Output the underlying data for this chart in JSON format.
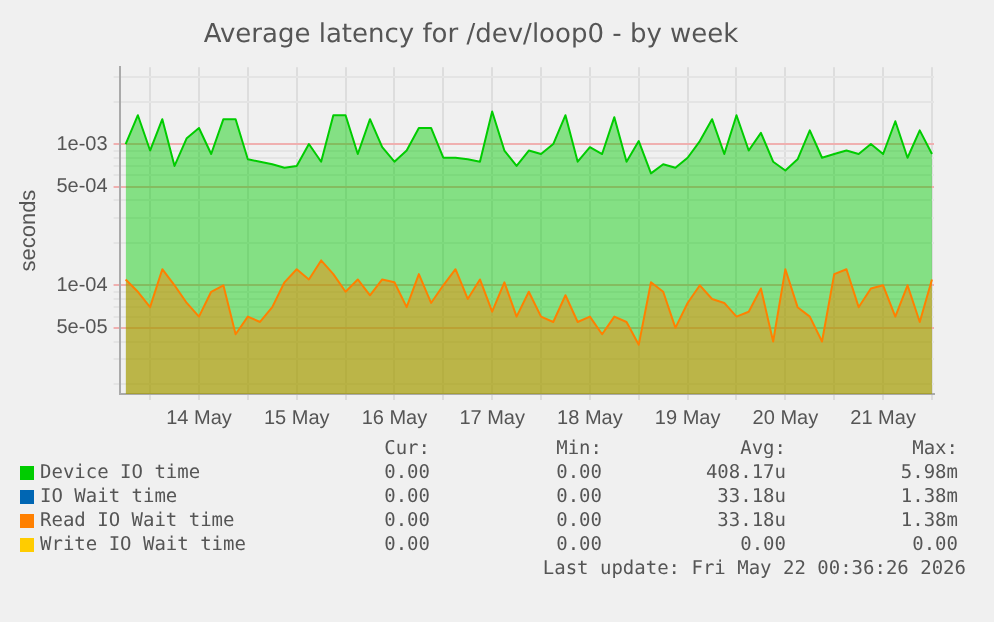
{
  "chart_data": {
    "type": "area",
    "title": "Average latency for /dev/loop0 - by week",
    "ylabel": "seconds",
    "log": "y",
    "x": [
      "2026-05-13T18:00",
      "2026-05-13T21:00",
      "2026-05-14T00:00",
      "2026-05-14T03:00",
      "2026-05-14T06:00",
      "2026-05-14T09:00",
      "2026-05-14T12:00",
      "2026-05-14T15:00",
      "2026-05-14T18:00",
      "2026-05-14T21:00",
      "2026-05-15T00:00",
      "2026-05-15T03:00",
      "2026-05-15T06:00",
      "2026-05-15T09:00",
      "2026-05-15T12:00",
      "2026-05-15T15:00",
      "2026-05-15T18:00",
      "2026-05-15T21:00",
      "2026-05-16T00:00",
      "2026-05-16T03:00",
      "2026-05-16T06:00",
      "2026-05-16T09:00",
      "2026-05-16T12:00",
      "2026-05-16T15:00",
      "2026-05-16T18:00",
      "2026-05-16T21:00",
      "2026-05-17T00:00",
      "2026-05-17T03:00",
      "2026-05-17T06:00",
      "2026-05-17T09:00",
      "2026-05-17T12:00",
      "2026-05-17T15:00",
      "2026-05-17T18:00",
      "2026-05-17T21:00",
      "2026-05-18T00:00",
      "2026-05-18T03:00",
      "2026-05-18T06:00",
      "2026-05-18T09:00",
      "2026-05-18T12:00",
      "2026-05-18T15:00",
      "2026-05-18T18:00",
      "2026-05-18T21:00",
      "2026-05-19T00:00",
      "2026-05-19T03:00",
      "2026-05-19T06:00",
      "2026-05-19T09:00",
      "2026-05-19T12:00",
      "2026-05-19T15:00",
      "2026-05-19T18:00",
      "2026-05-19T21:00",
      "2026-05-20T00:00",
      "2026-05-20T03:00",
      "2026-05-20T06:00",
      "2026-05-20T09:00",
      "2026-05-20T12:00",
      "2026-05-20T15:00",
      "2026-05-20T18:00",
      "2026-05-20T21:00",
      "2026-05-21T00:00",
      "2026-05-21T03:00",
      "2026-05-21T06:00",
      "2026-05-21T09:00",
      "2026-05-21T12:00",
      "2026-05-21T15:00",
      "2026-05-21T18:00",
      "2026-05-21T21:00",
      "2026-05-22T00:00"
    ],
    "series": [
      {
        "name": "Device IO time",
        "color": "#00cc00",
        "values": [
          0.001,
          0.0016,
          0.0009,
          0.0015,
          0.0007,
          0.0011,
          0.0013,
          0.00085,
          0.0015,
          0.0015,
          0.00078,
          0.00075,
          0.00072,
          0.00068,
          0.0007,
          0.001,
          0.00075,
          0.0016,
          0.0016,
          0.00085,
          0.0015,
          0.00095,
          0.00075,
          0.0009,
          0.0013,
          0.0013,
          0.0008,
          0.0008,
          0.00078,
          0.00075,
          0.0017,
          0.0009,
          0.0007,
          0.0009,
          0.00085,
          0.001,
          0.0016,
          0.00075,
          0.00095,
          0.00085,
          0.00155,
          0.00075,
          0.00105,
          0.00062,
          0.00072,
          0.00068,
          0.0008,
          0.00105,
          0.0015,
          0.00085,
          0.0016,
          0.0009,
          0.0012,
          0.00075,
          0.00065,
          0.00078,
          0.00125,
          0.0008,
          0.00085,
          0.0009,
          0.00085,
          0.001,
          0.00085,
          0.00145,
          0.0008,
          0.00125,
          0.00085
        ]
      },
      {
        "name": "IO Wait time",
        "color": "#0066b3",
        "values": [
          null,
          null,
          null,
          null,
          null,
          null,
          null,
          null,
          null,
          null,
          null,
          null,
          null,
          null,
          null,
          null,
          null,
          null,
          null,
          null,
          null,
          null,
          null,
          null,
          null,
          null,
          null,
          null,
          null,
          null,
          null,
          null,
          null,
          null,
          null,
          null,
          null,
          null,
          null,
          null,
          null,
          null,
          null,
          null,
          null,
          null,
          null,
          null,
          null,
          null,
          null,
          null,
          null,
          null,
          null,
          null,
          null,
          null,
          null,
          null,
          null,
          null,
          null,
          null,
          null,
          null,
          null
        ]
      },
      {
        "name": "Read IO Wait time",
        "color": "#ff8000",
        "values": [
          0.00011,
          9e-05,
          7e-05,
          0.00013,
          0.0001,
          7.5e-05,
          6e-05,
          9e-05,
          0.0001,
          4.5e-05,
          6e-05,
          5.5e-05,
          7e-05,
          0.000105,
          0.00013,
          0.00011,
          0.00015,
          0.00012,
          9e-05,
          0.00011,
          8.5e-05,
          0.00011,
          0.000105,
          7e-05,
          0.00012,
          7.5e-05,
          0.0001,
          0.00013,
          8e-05,
          0.00011,
          6.5e-05,
          0.000105,
          6e-05,
          9e-05,
          6e-05,
          5.5e-05,
          8.5e-05,
          5.5e-05,
          6e-05,
          4.5e-05,
          6e-05,
          5.5e-05,
          3.8e-05,
          0.000105,
          9e-05,
          5e-05,
          7.5e-05,
          0.0001,
          8e-05,
          7.5e-05,
          6e-05,
          6.5e-05,
          9.5e-05,
          4e-05,
          0.00013,
          7e-05,
          6e-05,
          4e-05,
          0.00012,
          0.00013,
          7e-05,
          9.5e-05,
          0.0001,
          6e-05,
          0.0001,
          5.5e-05,
          0.00011
        ]
      },
      {
        "name": "Write IO Wait time",
        "color": "#ffcc00",
        "values": [
          null,
          null,
          null,
          null,
          null,
          null,
          null,
          null,
          null,
          null,
          null,
          null,
          null,
          null,
          null,
          null,
          null,
          null,
          null,
          null,
          null,
          null,
          null,
          null,
          null,
          null,
          null,
          null,
          null,
          null,
          null,
          null,
          null,
          null,
          null,
          null,
          null,
          null,
          null,
          null,
          null,
          null,
          null,
          null,
          null,
          null,
          null,
          null,
          null,
          null,
          null,
          null,
          null,
          null,
          null,
          null,
          null,
          null,
          null,
          null,
          null,
          null,
          null,
          null,
          null,
          null,
          null
        ]
      }
    ],
    "xlim": [
      "2026-05-13T16:30",
      "2026-05-22T00:30"
    ],
    "xticks": [
      {
        "value": "2026-05-14T00:00",
        "label": null
      },
      {
        "value": "2026-05-14T12:00",
        "label": "14 May"
      },
      {
        "value": "2026-05-15T00:00",
        "label": null
      },
      {
        "value": "2026-05-15T12:00",
        "label": "15 May"
      },
      {
        "value": "2026-05-16T00:00",
        "label": null
      },
      {
        "value": "2026-05-16T12:00",
        "label": "16 May"
      },
      {
        "value": "2026-05-17T00:00",
        "label": null
      },
      {
        "value": "2026-05-17T12:00",
        "label": "17 May"
      },
      {
        "value": "2026-05-18T00:00",
        "label": null
      },
      {
        "value": "2026-05-18T12:00",
        "label": "18 May"
      },
      {
        "value": "2026-05-19T00:00",
        "label": null
      },
      {
        "value": "2026-05-19T12:00",
        "label": "19 May"
      },
      {
        "value": "2026-05-20T00:00",
        "label": null
      },
      {
        "value": "2026-05-20T12:00",
        "label": "20 May"
      },
      {
        "value": "2026-05-21T00:00",
        "label": null
      },
      {
        "value": "2026-05-21T12:00",
        "label": "21 May"
      },
      {
        "value": "2026-05-22T00:00",
        "label": null
      }
    ],
    "ylim": [
      1.7e-05,
      0.0035
    ],
    "yticks": [
      {
        "value": 2e-05,
        "label": null
      },
      {
        "value": 3e-05,
        "label": null
      },
      {
        "value": 4e-05,
        "label": null
      },
      {
        "value": 5e-05,
        "label": "5e-05"
      },
      {
        "value": 6e-05,
        "label": null
      },
      {
        "value": 7e-05,
        "label": null
      },
      {
        "value": 8e-05,
        "label": null
      },
      {
        "value": 9e-05,
        "label": null
      },
      {
        "value": 0.0001,
        "label": "1e-04"
      },
      {
        "value": 0.0002,
        "label": null
      },
      {
        "value": 0.0003,
        "label": null
      },
      {
        "value": 0.0004,
        "label": null
      },
      {
        "value": 0.0005,
        "label": "5e-04"
      },
      {
        "value": 0.0006,
        "label": null
      },
      {
        "value": 0.0007,
        "label": null
      },
      {
        "value": 0.0008,
        "label": null
      },
      {
        "value": 0.0009,
        "label": null
      },
      {
        "value": 0.001,
        "label": "1e-03"
      },
      {
        "value": 0.002,
        "label": null
      },
      {
        "value": 0.003,
        "label": null
      }
    ],
    "grid": true,
    "legend": "bottom",
    "annotations": [
      "Cur:",
      "Min:",
      "Avg:",
      "Max:",
      "0.00",
      "0.00",
      "408.17u",
      "5.98m",
      "0.00",
      "0.00",
      "33.18u",
      "1.38m",
      "0.00",
      "0.00",
      "33.18u",
      "1.38m",
      "0.00",
      "0.00",
      "0.00",
      "0.00",
      "Last update: Fri May 22 00:36:26 2026"
    ]
  }
}
